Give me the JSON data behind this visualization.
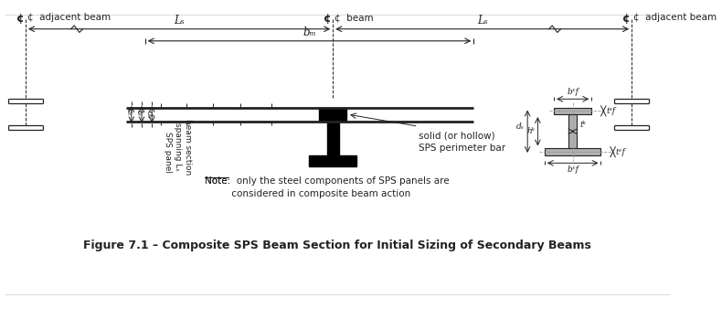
{
  "title": "Figure 7.1 – Composite SPS Beam Section for Initial Sizing of Secondary Beams",
  "note_text": "Note:  only the steel components of SPS panels are\nconsidered in composite beam action",
  "bg_color": "#ffffff",
  "line_color": "#222222",
  "label_cl_left": "¢  adjacent beam",
  "label_cl_center": "¢  beam",
  "label_cl_right": "¢  adjacent beam",
  "label_Ls_left": "Lₛ",
  "label_Ls_right": "Lₛ",
  "label_bm": "bₘ",
  "label_cs": "cₛ",
  "label_ts": "tₛ",
  "label_ds": "dₛ",
  "label_sps_panel": "SPS panel",
  "label_beam_section": "beam section\nspanning Lₛ",
  "label_solid_bar": "solid (or hollow)\nSPS perimeter bar",
  "label_bf_top": "bᵋf",
  "label_tf_top": "tᵌf",
  "label_tw": "tᵏ",
  "label_hw": "hᵏ",
  "label_ds_right": "dₛ",
  "label_tbf": "tᵋf",
  "label_bbf": "bᵋf"
}
